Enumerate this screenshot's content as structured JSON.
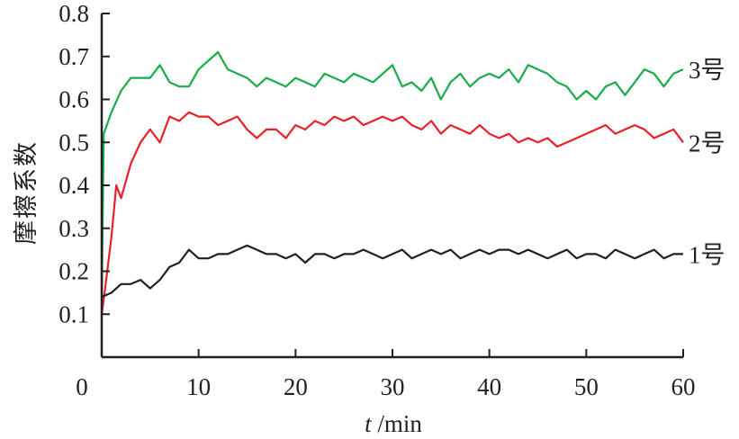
{
  "chart_data": {
    "type": "line",
    "title": "",
    "xlabel_italic": "t",
    "xlabel_unit": " /min",
    "ylabel": "摩擦系数",
    "xlim": [
      0,
      60
    ],
    "ylim": [
      0,
      0.8
    ],
    "xticks": [
      0,
      10,
      20,
      30,
      40,
      50,
      60
    ],
    "xtick_labels": [
      "0",
      "10",
      "20",
      "30",
      "40",
      "50",
      "60"
    ],
    "yticks": [
      0.1,
      0.2,
      0.3,
      0.4,
      0.5,
      0.6,
      0.7,
      0.8
    ],
    "ytick_labels": [
      "0.1",
      "0.2",
      "0.3",
      "0.4",
      "0.5",
      "0.6",
      "0.7",
      "0.8"
    ],
    "grid": false,
    "series": [
      {
        "name": "3号",
        "color": "#1aab4a",
        "x": [
          0,
          0.2,
          1,
          2,
          3,
          4,
          5,
          6,
          7,
          8,
          9,
          10,
          11,
          12,
          13,
          14,
          15,
          16,
          17,
          18,
          19,
          20,
          21,
          22,
          23,
          24,
          25,
          26,
          27,
          28,
          29,
          30,
          31,
          32,
          33,
          34,
          35,
          36,
          37,
          38,
          39,
          40,
          41,
          42,
          43,
          44,
          45,
          46,
          47,
          48,
          49,
          50,
          51,
          52,
          53,
          54,
          55,
          56,
          57,
          58,
          59,
          60
        ],
        "y": [
          0.13,
          0.52,
          0.57,
          0.62,
          0.65,
          0.65,
          0.65,
          0.68,
          0.64,
          0.63,
          0.63,
          0.67,
          0.69,
          0.71,
          0.67,
          0.66,
          0.65,
          0.63,
          0.65,
          0.64,
          0.63,
          0.65,
          0.64,
          0.63,
          0.66,
          0.65,
          0.64,
          0.66,
          0.65,
          0.64,
          0.66,
          0.68,
          0.63,
          0.64,
          0.62,
          0.65,
          0.6,
          0.64,
          0.66,
          0.63,
          0.65,
          0.66,
          0.65,
          0.67,
          0.64,
          0.68,
          0.67,
          0.66,
          0.64,
          0.63,
          0.6,
          0.62,
          0.6,
          0.63,
          0.64,
          0.61,
          0.64,
          0.67,
          0.66,
          0.63,
          0.66,
          0.67
        ]
      },
      {
        "name": "2号",
        "color": "#e8202a",
        "x": [
          0,
          0.3,
          1,
          1.5,
          2,
          3,
          4,
          5,
          6,
          7,
          8,
          9,
          10,
          11,
          12,
          13,
          14,
          15,
          16,
          17,
          18,
          19,
          20,
          21,
          22,
          23,
          24,
          25,
          26,
          27,
          28,
          29,
          30,
          31,
          32,
          33,
          34,
          35,
          36,
          37,
          38,
          39,
          40,
          41,
          42,
          43,
          44,
          45,
          46,
          47,
          48,
          49,
          50,
          51,
          52,
          53,
          54,
          55,
          56,
          57,
          58,
          59,
          60
        ],
        "y": [
          0.1,
          0.15,
          0.28,
          0.4,
          0.37,
          0.45,
          0.5,
          0.53,
          0.5,
          0.56,
          0.55,
          0.57,
          0.56,
          0.56,
          0.54,
          0.55,
          0.56,
          0.53,
          0.51,
          0.53,
          0.53,
          0.51,
          0.54,
          0.53,
          0.55,
          0.54,
          0.56,
          0.55,
          0.56,
          0.54,
          0.55,
          0.56,
          0.55,
          0.56,
          0.54,
          0.53,
          0.55,
          0.52,
          0.54,
          0.53,
          0.52,
          0.54,
          0.52,
          0.51,
          0.52,
          0.5,
          0.51,
          0.5,
          0.51,
          0.49,
          0.5,
          0.51,
          0.52,
          0.53,
          0.54,
          0.52,
          0.53,
          0.54,
          0.53,
          0.51,
          0.52,
          0.53,
          0.5
        ]
      },
      {
        "name": "1号",
        "color": "#231f20",
        "x": [
          0,
          1,
          2,
          3,
          4,
          5,
          6,
          7,
          8,
          9,
          10,
          11,
          12,
          13,
          14,
          15,
          16,
          17,
          18,
          19,
          20,
          21,
          22,
          23,
          24,
          25,
          26,
          27,
          28,
          29,
          30,
          31,
          32,
          33,
          34,
          35,
          36,
          37,
          38,
          39,
          40,
          41,
          42,
          43,
          44,
          45,
          46,
          47,
          48,
          49,
          50,
          51,
          52,
          53,
          54,
          55,
          56,
          57,
          58,
          59,
          60
        ],
        "y": [
          0.14,
          0.15,
          0.17,
          0.17,
          0.18,
          0.16,
          0.18,
          0.21,
          0.22,
          0.25,
          0.23,
          0.23,
          0.24,
          0.24,
          0.25,
          0.26,
          0.25,
          0.24,
          0.24,
          0.23,
          0.24,
          0.22,
          0.24,
          0.24,
          0.23,
          0.24,
          0.24,
          0.25,
          0.24,
          0.23,
          0.24,
          0.25,
          0.23,
          0.24,
          0.25,
          0.24,
          0.25,
          0.23,
          0.24,
          0.25,
          0.24,
          0.25,
          0.25,
          0.24,
          0.25,
          0.24,
          0.23,
          0.24,
          0.25,
          0.23,
          0.24,
          0.24,
          0.23,
          0.25,
          0.24,
          0.23,
          0.24,
          0.25,
          0.23,
          0.24,
          0.24
        ]
      }
    ]
  }
}
